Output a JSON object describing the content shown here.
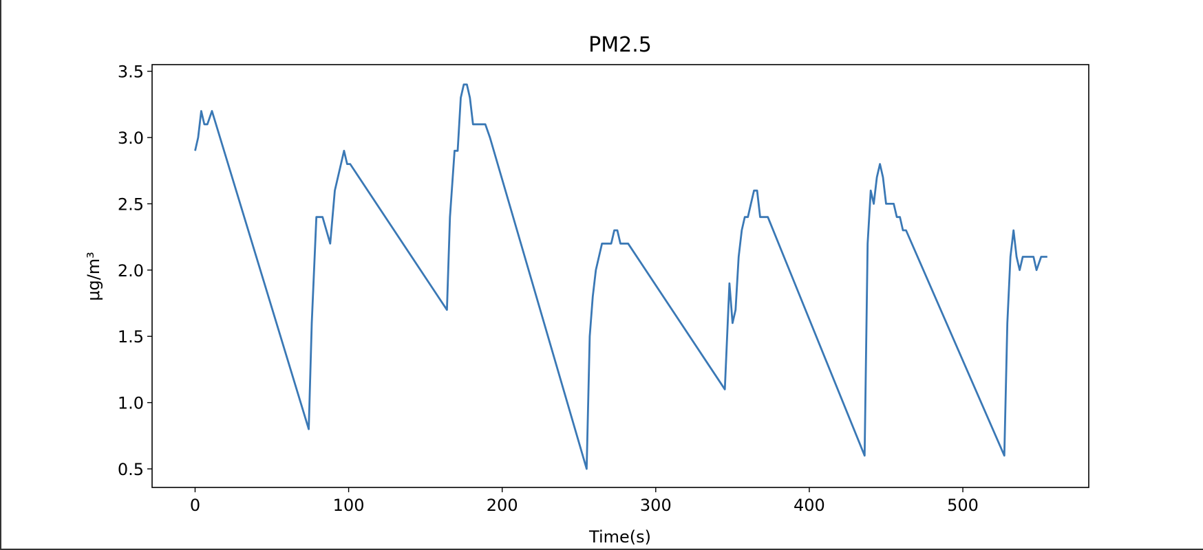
{
  "chart_data": {
    "type": "line",
    "title": "PM2.5",
    "xlabel": "Time(s)",
    "ylabel": "μg/m³",
    "xlim": [
      -28,
      582
    ],
    "ylim": [
      0.36,
      3.55
    ],
    "xticks": [
      0,
      100,
      200,
      300,
      400,
      500
    ],
    "yticks": [
      0.5,
      1.0,
      1.5,
      2.0,
      2.5,
      3.0,
      3.5
    ],
    "xtick_labels": [
      "0",
      "100",
      "200",
      "300",
      "400",
      "500"
    ],
    "ytick_labels": [
      "0.5",
      "1.0",
      "1.5",
      "2.0",
      "2.5",
      "3.0",
      "3.5"
    ],
    "grid": false,
    "series": [
      {
        "color": "#3a78b5",
        "x": [
          0,
          2,
          4,
          6,
          8,
          11,
          74,
          76,
          79,
          83,
          88,
          91,
          97,
          99,
          101,
          164,
          166,
          169,
          171,
          173,
          175,
          177,
          179,
          181,
          183,
          186,
          189,
          192,
          255,
          257,
          259,
          261,
          265,
          268,
          271,
          273,
          275,
          277,
          279,
          282,
          345,
          348,
          350,
          352,
          354,
          356,
          358,
          360,
          362,
          364,
          366,
          368,
          370,
          373,
          436,
          438,
          440,
          442,
          444,
          446,
          448,
          450,
          452,
          455,
          457,
          459,
          461,
          463,
          527,
          529,
          531,
          533,
          535,
          537,
          539,
          541,
          543,
          546,
          548,
          551,
          553,
          555
        ],
        "y": [
          2.9,
          3.0,
          3.2,
          3.1,
          3.1,
          3.2,
          0.8,
          1.6,
          2.4,
          2.4,
          2.2,
          2.6,
          2.9,
          2.8,
          2.8,
          1.7,
          2.4,
          2.9,
          2.9,
          3.3,
          3.4,
          3.4,
          3.3,
          3.1,
          3.1,
          3.1,
          3.1,
          3.0,
          0.5,
          1.5,
          1.8,
          2.0,
          2.2,
          2.2,
          2.2,
          2.3,
          2.3,
          2.2,
          2.2,
          2.2,
          1.1,
          1.9,
          1.6,
          1.7,
          2.1,
          2.3,
          2.4,
          2.4,
          2.5,
          2.6,
          2.6,
          2.4,
          2.4,
          2.4,
          0.6,
          2.2,
          2.6,
          2.5,
          2.7,
          2.8,
          2.7,
          2.5,
          2.5,
          2.5,
          2.4,
          2.4,
          2.3,
          2.3,
          0.6,
          1.6,
          2.1,
          2.3,
          2.1,
          2.0,
          2.1,
          2.1,
          2.1,
          2.1,
          2.0,
          2.1,
          2.1,
          2.1
        ]
      }
    ]
  }
}
